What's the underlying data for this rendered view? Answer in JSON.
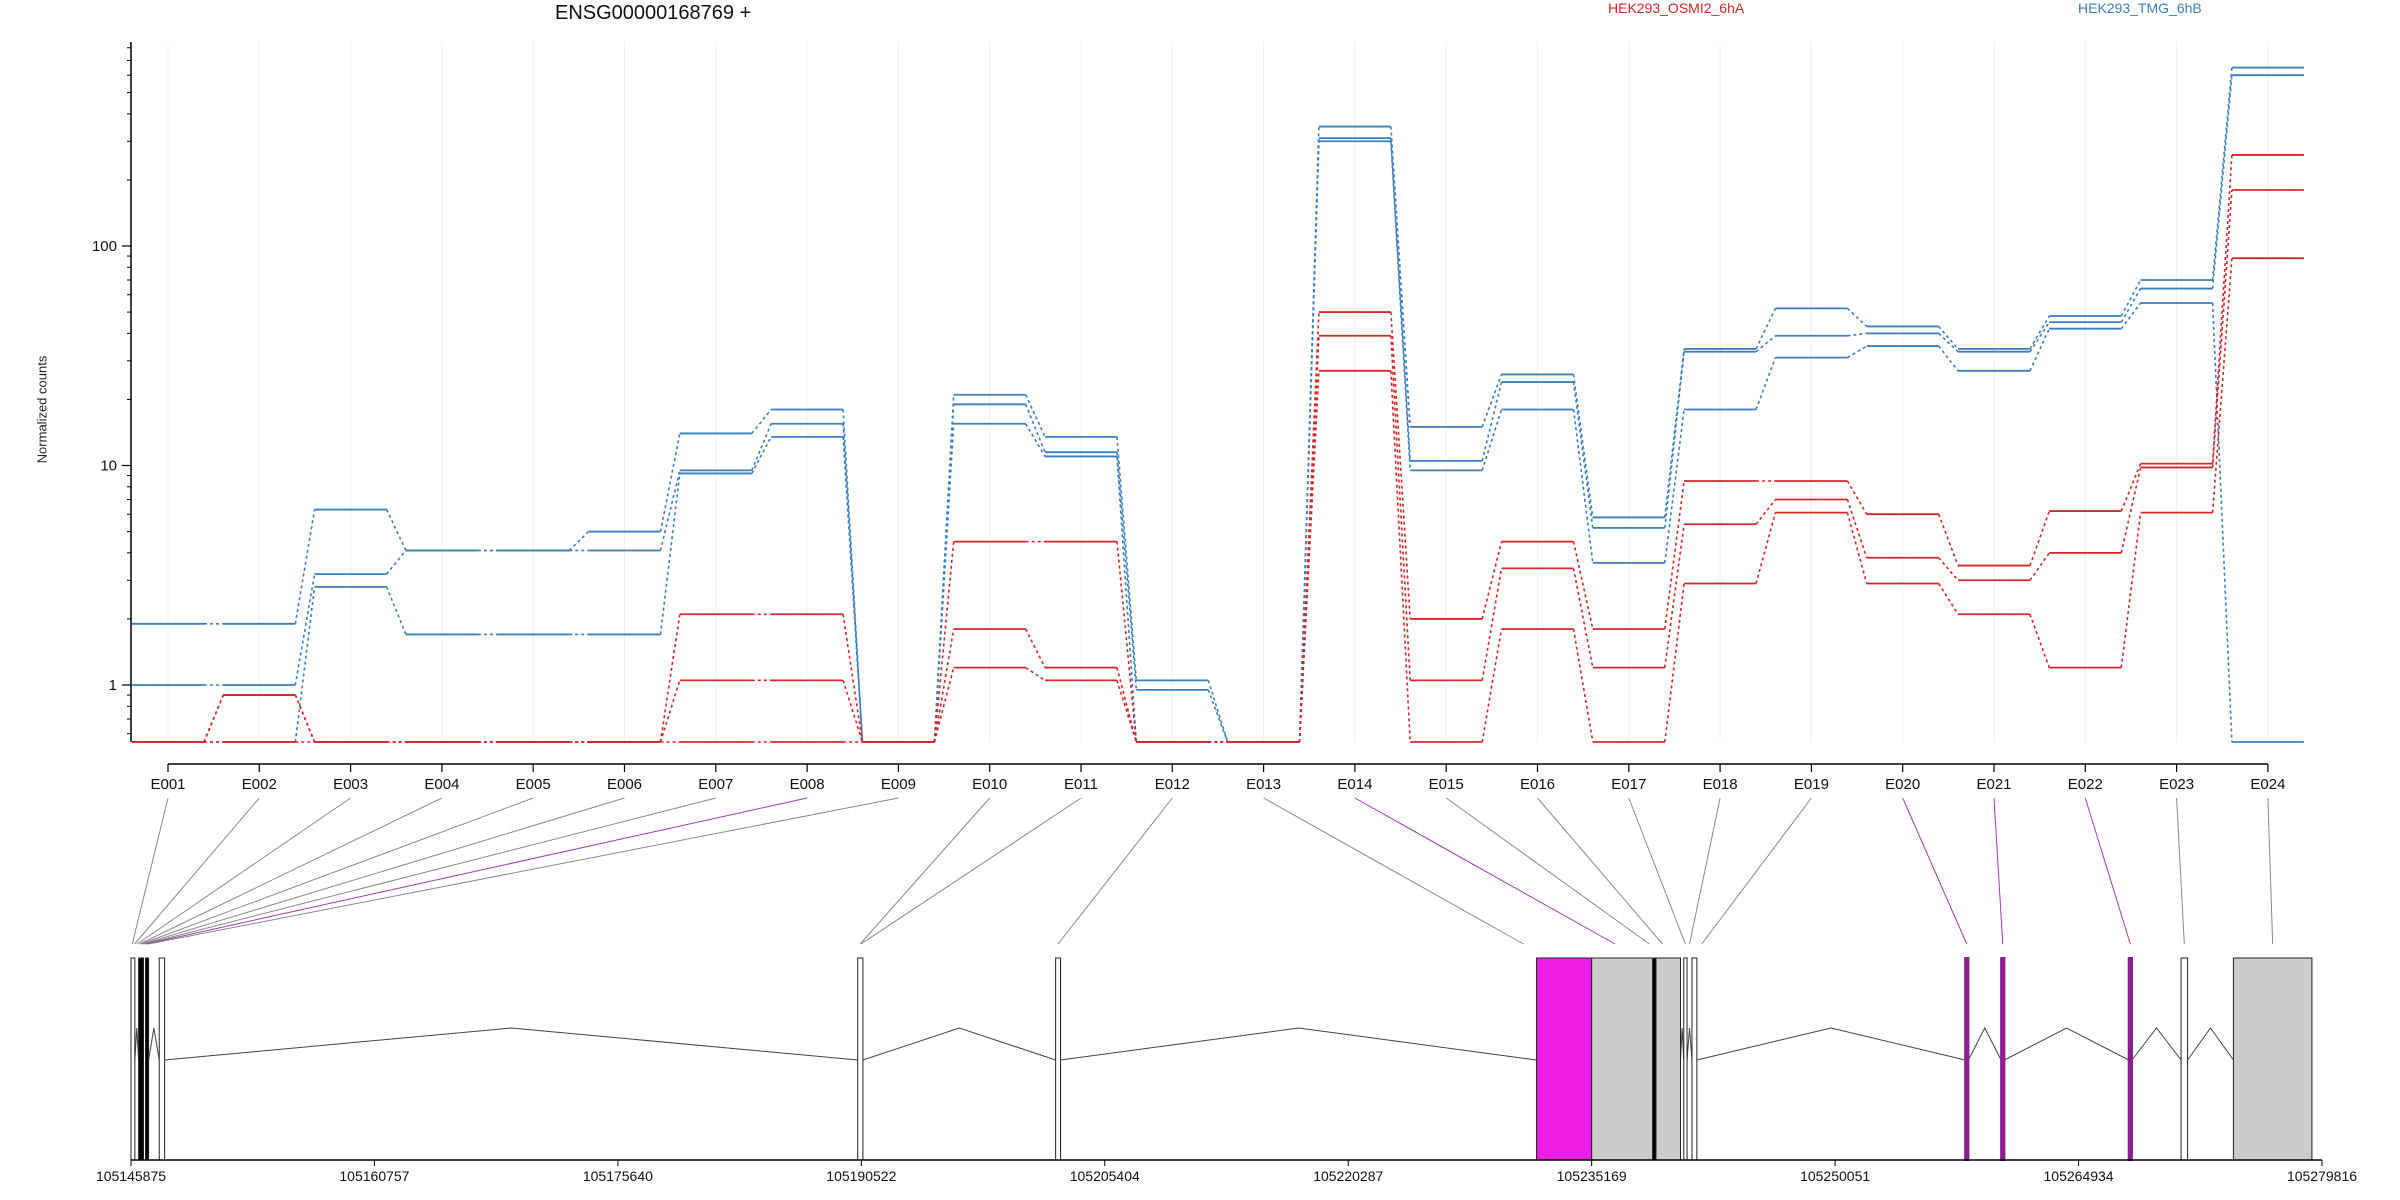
{
  "chart_data": {
    "type": "line",
    "title": "ENSG00000168769 +",
    "ylabel": "Normalized counts",
    "y_scale": "log",
    "ylim": [
      0.55,
      850
    ],
    "y_ticks": [
      1,
      10,
      100
    ],
    "y_tick_labels": [
      "1",
      "10",
      "100"
    ],
    "categories": [
      "E001",
      "E002",
      "E003",
      "E004",
      "E005",
      "E006",
      "E007",
      "E008",
      "E009",
      "E010",
      "E011",
      "E012",
      "E013",
      "E014",
      "E015",
      "E016",
      "E017",
      "E018",
      "E019",
      "E020",
      "E021",
      "E022",
      "E023",
      "E024"
    ],
    "grid": true,
    "legend": [
      {
        "label": "HEK293_OSMI2_6hA",
        "color": "#d62728"
      },
      {
        "label": "HEK293_TMG_6hB",
        "color": "#3a7fc1"
      }
    ],
    "series": [
      {
        "group": "HEK293_TMG_6hB",
        "color": "#3a7fc1",
        "values": [
          1.9,
          1.9,
          6.3,
          4.1,
          4.1,
          5.0,
          14,
          18,
          0.55,
          21,
          13.5,
          1.05,
          0.55,
          350,
          15,
          26,
          5.8,
          34,
          52,
          43,
          34,
          48,
          70,
          650
        ]
      },
      {
        "group": "HEK293_TMG_6hB",
        "color": "#3a7fc1",
        "values": [
          1.0,
          1.0,
          3.2,
          4.1,
          4.1,
          4.1,
          9.5,
          15.5,
          0.55,
          19,
          11.5,
          0.95,
          0.55,
          310,
          10.5,
          24,
          5.2,
          33,
          39,
          40,
          33,
          45,
          64,
          600
        ]
      },
      {
        "group": "HEK293_TMG_6hB",
        "color": "#3a7fc1",
        "values": [
          0.55,
          0.55,
          2.8,
          1.7,
          1.7,
          1.7,
          9.2,
          13.5,
          0.55,
          15.5,
          11,
          0.55,
          0.55,
          300,
          9.5,
          18,
          3.6,
          18,
          31,
          35,
          27,
          42,
          55,
          0.55
        ]
      },
      {
        "group": "HEK293_OSMI2_6hA",
        "color": "#d62728",
        "values": [
          0.55,
          0.9,
          0.55,
          0.55,
          0.55,
          0.55,
          2.1,
          2.1,
          0.55,
          4.5,
          4.5,
          0.55,
          0.55,
          50,
          2.0,
          4.5,
          1.8,
          8.5,
          8.5,
          6.0,
          3.5,
          6.2,
          10.2,
          260
        ]
      },
      {
        "group": "HEK293_OSMI2_6hA",
        "color": "#d62728",
        "values": [
          0.55,
          0.9,
          0.55,
          0.55,
          0.55,
          0.55,
          1.05,
          1.05,
          0.55,
          1.8,
          1.2,
          0.55,
          0.55,
          39,
          1.05,
          3.4,
          1.2,
          5.4,
          7.0,
          3.8,
          3.0,
          4.0,
          9.8,
          180
        ]
      },
      {
        "group": "HEK293_OSMI2_6hA",
        "color": "#d62728",
        "values": [
          0.55,
          0.55,
          0.55,
          0.55,
          0.55,
          0.55,
          0.55,
          0.55,
          0.55,
          1.2,
          1.05,
          0.55,
          0.55,
          27,
          0.55,
          1.8,
          0.55,
          2.9,
          6.1,
          2.9,
          2.1,
          1.2,
          6.1,
          88
        ]
      }
    ],
    "gene_model": {
      "coordinate_axis_ticks": [
        105145875,
        105160757,
        105175640,
        105190522,
        105205404,
        105220287,
        105235169,
        105250051,
        105264934,
        105279816
      ],
      "coordinate_axis_labels": [
        "105145875",
        "105160757",
        "105175640",
        "105190522",
        "105205404",
        "105220287",
        "105235169",
        "105250051",
        "105264934",
        "105279816"
      ],
      "range": [
        105145875,
        105279816
      ],
      "bin_colors": {
        "normal": "#ffffff",
        "expressed": "#cccccc",
        "highlight": "#ee1ee5",
        "tested_line": "#8a2090"
      },
      "exons": [
        {
          "start": 105145875,
          "end": 105146110,
          "fill": "normal"
        },
        {
          "start": 105146340,
          "end": 105146640,
          "fill": "tested"
        },
        {
          "start": 105146760,
          "end": 105146950,
          "fill": "tested"
        },
        {
          "start": 105147600,
          "end": 105147930,
          "fill": "normal"
        },
        {
          "start": 105190300,
          "end": 105190620,
          "fill": "normal"
        },
        {
          "start": 105202400,
          "end": 105202700,
          "fill": "normal"
        },
        {
          "start": 105231800,
          "end": 105235170,
          "fill": "highlight"
        },
        {
          "start": 105235170,
          "end": 105238900,
          "fill": "expressed"
        },
        {
          "start": 105238900,
          "end": 105239100,
          "fill": "tested"
        },
        {
          "start": 105239100,
          "end": 105240600,
          "fill": "expressed"
        },
        {
          "start": 105240800,
          "end": 105241000,
          "fill": "normal"
        },
        {
          "start": 105241300,
          "end": 105241600,
          "fill": "normal"
        },
        {
          "start": 105258000,
          "end": 105258200,
          "fill": "magenta_line"
        },
        {
          "start": 105260200,
          "end": 105260400,
          "fill": "magenta_line"
        },
        {
          "start": 105268000,
          "end": 105268200,
          "fill": "magenta_line"
        },
        {
          "start": 105271200,
          "end": 105271600,
          "fill": "normal"
        },
        {
          "start": 105274400,
          "end": 105279200,
          "fill": "expressed"
        }
      ],
      "exon_bins_genomic_mid": [
        105145950,
        105146100,
        105146250,
        105146400,
        105146500,
        105146600,
        105146700,
        105146800,
        105146950,
        105190450,
        105190500,
        105202550,
        105231000,
        105236600,
        105238700,
        105239500,
        105240900,
        105241150,
        105241900,
        105258100,
        105260300,
        105268100,
        105271400,
        105276800
      ],
      "highlighted_bins": [
        "E008",
        "E014",
        "E020",
        "E021",
        "E022"
      ]
    }
  }
}
